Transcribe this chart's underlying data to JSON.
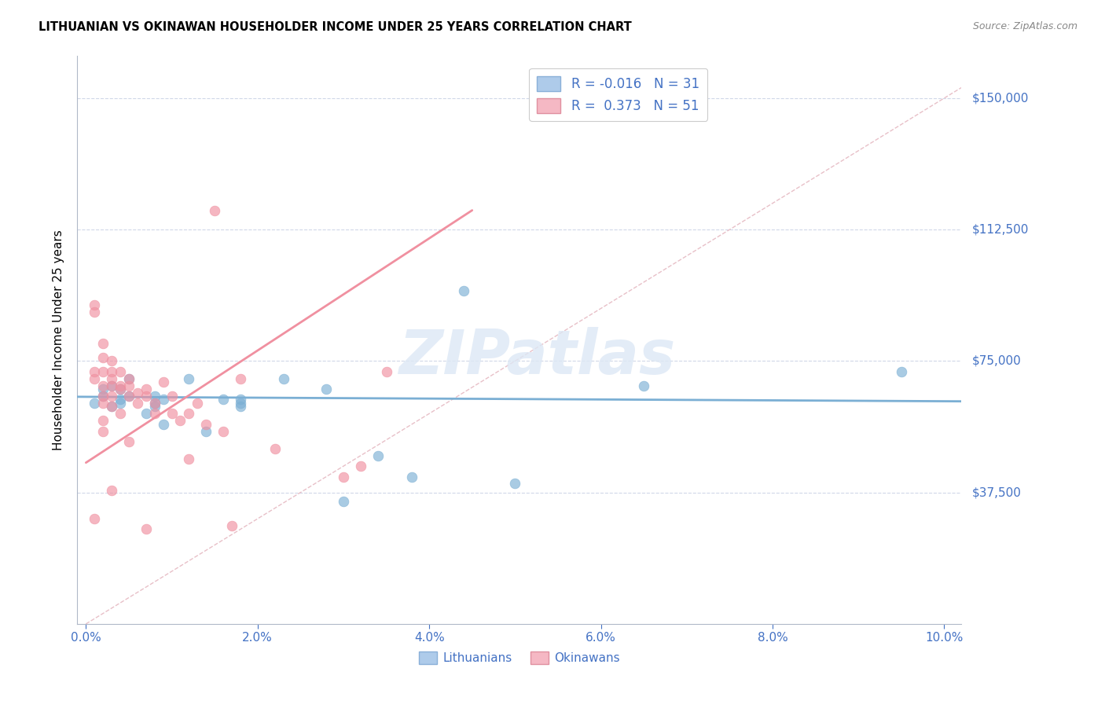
{
  "title": "LITHUANIAN VS OKINAWAN HOUSEHOLDER INCOME UNDER 25 YEARS CORRELATION CHART",
  "source": "Source: ZipAtlas.com",
  "xlabel_ticks": [
    "0.0%",
    "2.0%",
    "4.0%",
    "6.0%",
    "8.0%",
    "10.0%"
  ],
  "xlabel_vals": [
    0.0,
    0.02,
    0.04,
    0.06,
    0.08,
    0.1
  ],
  "ylabel_ticks": [
    "$37,500",
    "$75,000",
    "$112,500",
    "$150,000"
  ],
  "ylabel_vals": [
    37500,
    75000,
    112500,
    150000
  ],
  "ylim": [
    0,
    162000
  ],
  "xlim": [
    -0.001,
    0.102
  ],
  "watermark": "ZIPatlas",
  "legend_R1": "R = ",
  "legend_R1_val": "-0.016",
  "legend_N1": "N = ",
  "legend_N1_val": "31",
  "legend_R2": "R =  ",
  "legend_R2_val": "0.373",
  "legend_N2": "N = ",
  "legend_N2_val": "51",
  "legend_label1": "Lithuanians",
  "legend_label2": "Okinawans",
  "blue_color": "#7bafd4",
  "pink_color": "#f090a0",
  "blue_patch_face": "#aecbea",
  "pink_patch_face": "#f5b8c4",
  "axis_color": "#4472c4",
  "grid_color": "#d0d8e8",
  "scatter_size": 85,
  "lithuanians_x": [
    0.001,
    0.002,
    0.002,
    0.003,
    0.003,
    0.004,
    0.004,
    0.004,
    0.005,
    0.005,
    0.007,
    0.008,
    0.008,
    0.008,
    0.009,
    0.009,
    0.012,
    0.014,
    0.016,
    0.018,
    0.018,
    0.018,
    0.023,
    0.028,
    0.03,
    0.034,
    0.038,
    0.044,
    0.05,
    0.065,
    0.095
  ],
  "lithuanians_y": [
    63000,
    67000,
    65000,
    62000,
    68000,
    64000,
    63000,
    67000,
    65000,
    70000,
    60000,
    63000,
    62000,
    65000,
    57000,
    64000,
    70000,
    55000,
    64000,
    62000,
    63000,
    64000,
    70000,
    67000,
    35000,
    48000,
    42000,
    95000,
    40000,
    68000,
    72000
  ],
  "okinawans_x": [
    0.001,
    0.001,
    0.001,
    0.001,
    0.001,
    0.002,
    0.002,
    0.002,
    0.002,
    0.002,
    0.002,
    0.002,
    0.003,
    0.003,
    0.003,
    0.003,
    0.003,
    0.003,
    0.004,
    0.004,
    0.004,
    0.004,
    0.005,
    0.005,
    0.005,
    0.006,
    0.006,
    0.007,
    0.007,
    0.008,
    0.008,
    0.009,
    0.01,
    0.01,
    0.011,
    0.012,
    0.012,
    0.013,
    0.014,
    0.015,
    0.016,
    0.017,
    0.018,
    0.022,
    0.03,
    0.032,
    0.035,
    0.002,
    0.003,
    0.005,
    0.007
  ],
  "okinawans_y": [
    91000,
    89000,
    72000,
    70000,
    30000,
    80000,
    76000,
    72000,
    68000,
    65000,
    63000,
    58000,
    75000,
    72000,
    70000,
    68000,
    65000,
    62000,
    72000,
    68000,
    67000,
    60000,
    70000,
    68000,
    65000,
    66000,
    63000,
    67000,
    65000,
    63000,
    60000,
    69000,
    65000,
    60000,
    58000,
    60000,
    47000,
    63000,
    57000,
    118000,
    55000,
    28000,
    70000,
    50000,
    42000,
    45000,
    72000,
    55000,
    38000,
    52000,
    27000
  ],
  "diag_line_x": [
    0.0,
    0.102
  ],
  "diag_line_y": [
    0,
    153000
  ],
  "blue_trend_x": [
    -0.001,
    0.102
  ],
  "blue_trend_y": [
    64800,
    63500
  ],
  "pink_trend_x": [
    0.0,
    0.045
  ],
  "pink_trend_y": [
    46000,
    118000
  ]
}
